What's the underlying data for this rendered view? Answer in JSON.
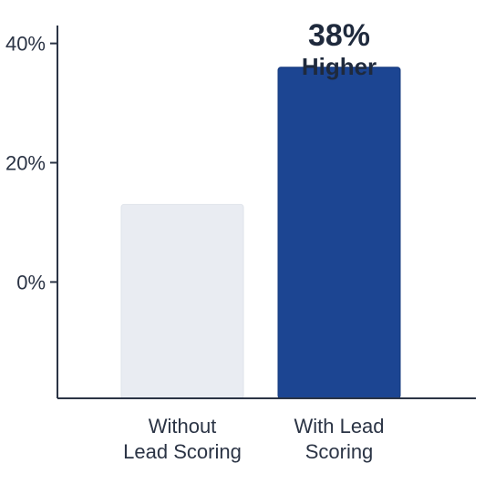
{
  "chart_data": {
    "type": "bar",
    "categories": [
      [
        "Without",
        "Lead Scoring"
      ],
      [
        "With Lead",
        "Scoring"
      ]
    ],
    "values": [
      13,
      36
    ],
    "ylim": [
      -19.5,
      43
    ],
    "yticks": [
      {
        "value": 40,
        "label": "40%"
      },
      {
        "value": 20,
        "label": "20%"
      },
      {
        "value": 0,
        "label": "0%"
      }
    ],
    "annotation": {
      "lines": [
        "38%",
        "Higher"
      ],
      "category_index": 1
    },
    "colors": {
      "bars": [
        "#e9ecf2",
        "#1c4592"
      ],
      "bar_stroke": [
        "#dfe3ea",
        "#163a7c"
      ],
      "axis": "#2b3445"
    },
    "grid": false,
    "legend": "none",
    "title": "",
    "xlabel": "",
    "ylabel": ""
  }
}
